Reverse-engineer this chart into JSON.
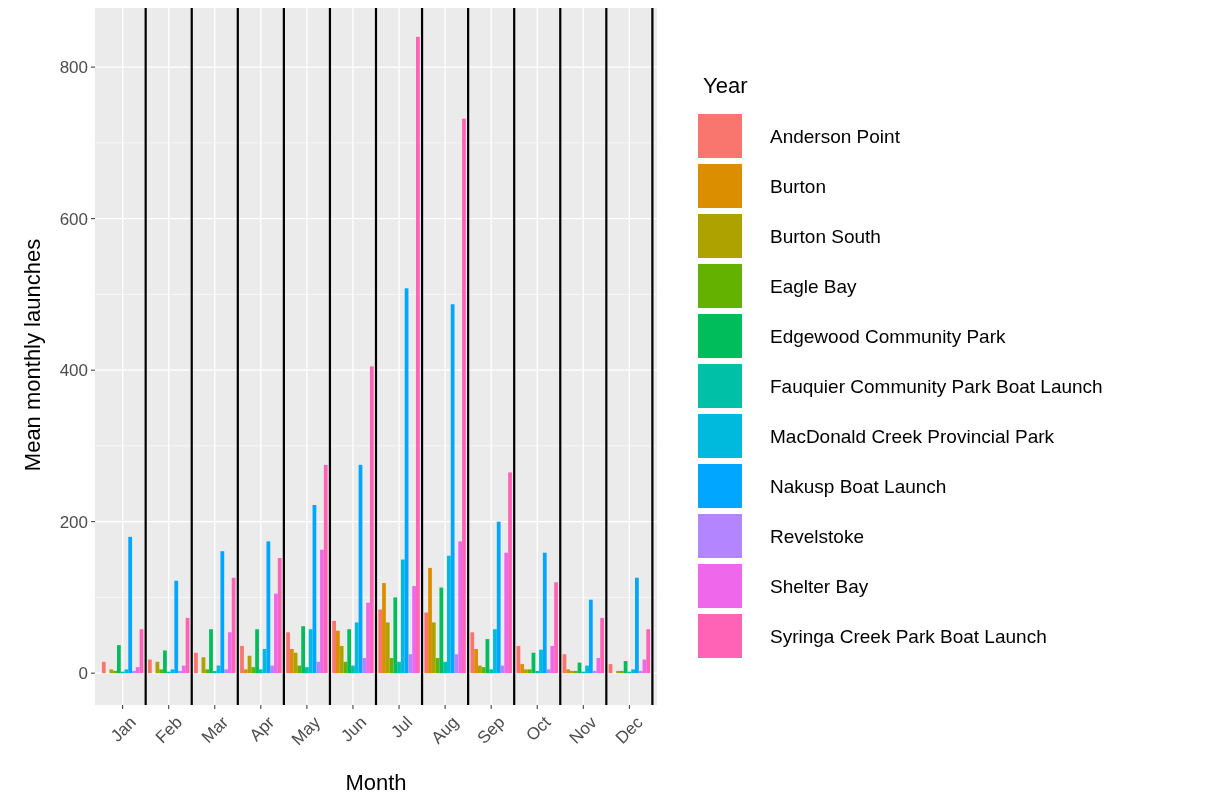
{
  "chart_data": {
    "type": "bar",
    "xlabel": "Month",
    "ylabel": "Mean monthly launches",
    "legend_title": "Year",
    "categories": [
      "Jan",
      "Feb",
      "Mar",
      "Apr",
      "May",
      "Jun",
      "Jul",
      "Aug",
      "Sep",
      "Oct",
      "Nov",
      "Dec"
    ],
    "series": [
      {
        "name": "Anderson Point",
        "color": "#f8766d",
        "values": [
          15,
          18,
          27,
          36,
          54,
          69,
          84,
          80,
          54,
          36,
          25,
          12
        ]
      },
      {
        "name": "Burton",
        "color": "#db8e00",
        "values": [
          0,
          0,
          0,
          5,
          32,
          56,
          119,
          139,
          32,
          12,
          5,
          0
        ]
      },
      {
        "name": "Burton South",
        "color": "#aea200",
        "values": [
          5,
          15,
          21,
          23,
          27,
          36,
          67,
          67,
          10,
          5,
          3,
          3
        ]
      },
      {
        "name": "Eagle Bay",
        "color": "#64b200",
        "values": [
          3,
          5,
          5,
          8,
          10,
          15,
          20,
          20,
          8,
          5,
          3,
          3
        ]
      },
      {
        "name": "Edgewood Community Park",
        "color": "#00bd5c",
        "values": [
          37,
          30,
          58,
          58,
          62,
          58,
          100,
          113,
          45,
          27,
          14,
          16
        ]
      },
      {
        "name": "Fauquier Community Park Boat Launch",
        "color": "#00c1a7",
        "values": [
          2,
          2,
          3,
          5,
          8,
          10,
          15,
          15,
          5,
          3,
          2,
          2
        ]
      },
      {
        "name": "MacDonald Creek Provincial Park",
        "color": "#00bade",
        "values": [
          5,
          5,
          10,
          32,
          58,
          67,
          150,
          155,
          58,
          31,
          10,
          5
        ]
      },
      {
        "name": "Nakusp Boat Launch",
        "color": "#00a6ff",
        "values": [
          180,
          122,
          161,
          174,
          222,
          275,
          508,
          487,
          200,
          159,
          97,
          126
        ]
      },
      {
        "name": "Revelstoke",
        "color": "#b385ff",
        "values": [
          3,
          3,
          5,
          10,
          15,
          20,
          25,
          25,
          10,
          5,
          3,
          3
        ]
      },
      {
        "name": "Shelter Bay",
        "color": "#ef67eb",
        "values": [
          8,
          10,
          54,
          105,
          163,
          93,
          115,
          174,
          159,
          36,
          20,
          18
        ]
      },
      {
        "name": "Syringa Creek Park Boat Launch",
        "color": "#ff63b6",
        "values": [
          58,
          73,
          126,
          152,
          275,
          405,
          840,
          732,
          265,
          120,
          73,
          58
        ]
      }
    ],
    "ylim": [
      -42,
      882
    ],
    "yticks": [
      0,
      200,
      400,
      600,
      800
    ],
    "grid": true,
    "legend": "right"
  }
}
